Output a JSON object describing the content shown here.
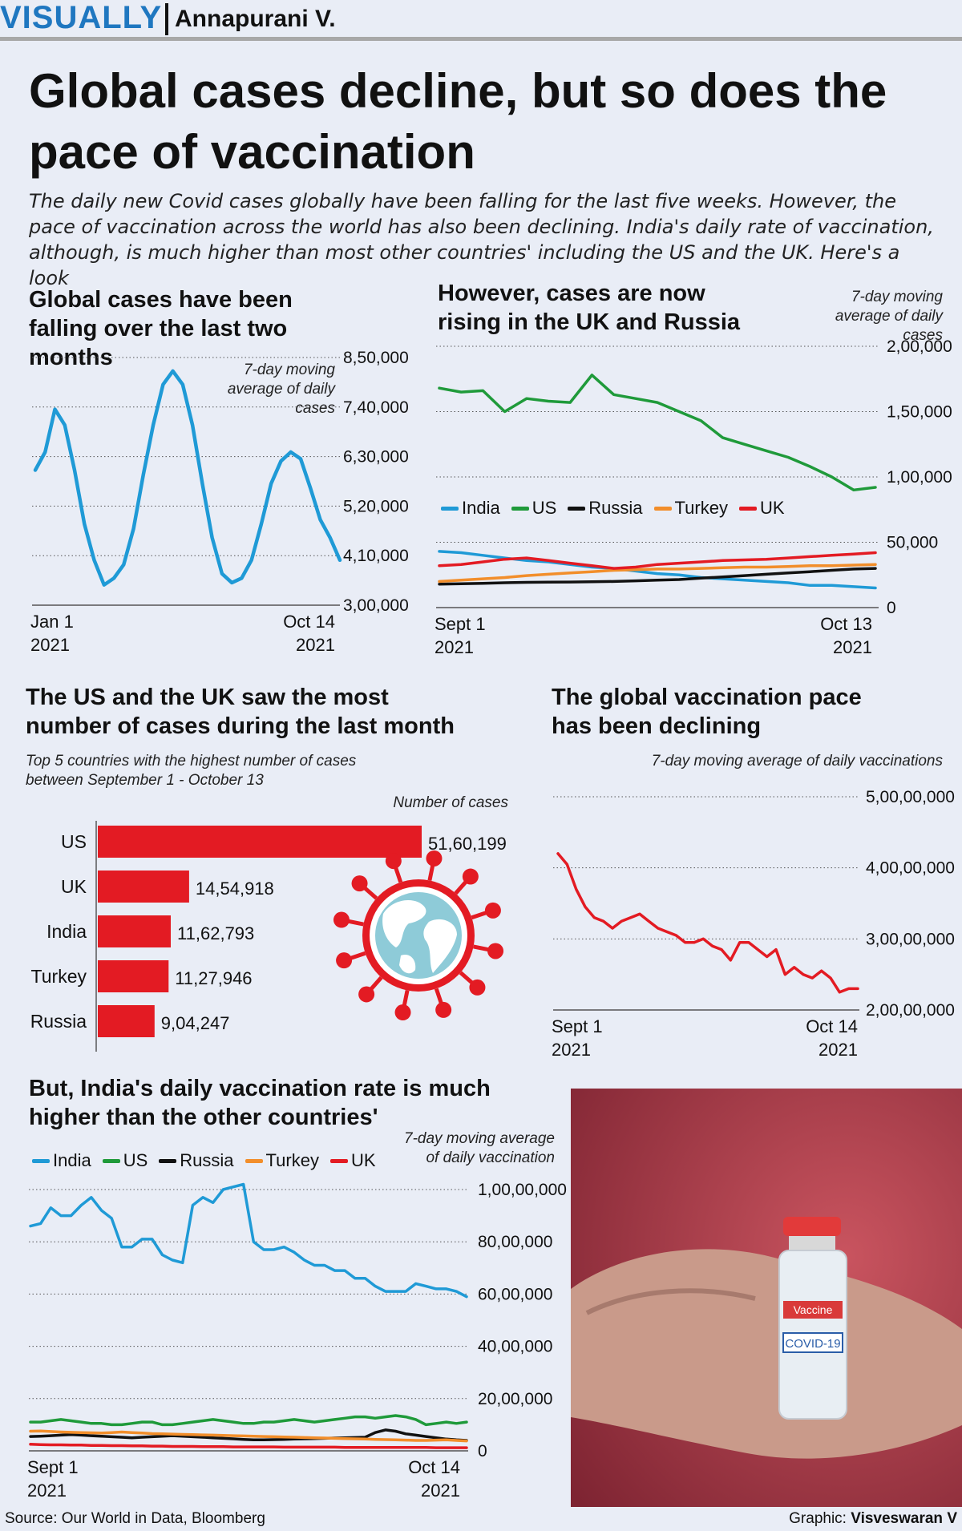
{
  "header": {
    "brand": "VISUALLY",
    "byline": "Annapurani V."
  },
  "headline": "Global cases decline, but so does the pace of vaccination",
  "subheadline": "The daily new Covid cases globally have been falling for the last five weeks. However, the pace of vaccination across the world has also been declining. India's daily rate of vaccination, although, is much higher than most other countries' including the US and the UK. Here's a look",
  "footer": {
    "source": "Source: Our World in Data, Bloomberg",
    "credit_label": "Graphic: ",
    "credit_name": "Visveswaran V"
  },
  "colors": {
    "India": "#1f9ad6",
    "US": "#1f9a3a",
    "Russia": "#111111",
    "Turkey": "#f28e2b",
    "UK": "#e31b23",
    "global": "#1f9ad6",
    "vaccine": "#e31b23",
    "bar": "#e31b23",
    "background": "#e9edf6"
  },
  "icons": {
    "virus": "virus-globe-icon",
    "photo": "vaccine-vial-in-hand-photo"
  },
  "chart_data": [
    {
      "id": "global_cases",
      "type": "line",
      "title": "Global cases have been falling over the last two months",
      "note": "7-day moving average of daily cases",
      "x_start_label": "Jan 1",
      "x_start_year": "2021",
      "x_end_label": "Oct 14",
      "x_end_year": "2021",
      "y_ticks": [
        "3,00,000",
        "4,10,000",
        "5,20,000",
        "6,30,000",
        "7,40,000",
        "8,50,000"
      ],
      "ylim": [
        300000,
        850000
      ],
      "series": [
        {
          "values": [
            600000,
            640000,
            735000,
            700000,
            600000,
            480000,
            400000,
            345000,
            360000,
            390000,
            470000,
            590000,
            700000,
            790000,
            820000,
            790000,
            700000,
            570000,
            450000,
            370000,
            350000,
            360000,
            400000,
            480000,
            570000,
            620000,
            640000,
            625000,
            560000,
            490000,
            450000,
            400000
          ]
        }
      ]
    },
    {
      "id": "country_cases",
      "type": "line",
      "title": "However, cases are now rising in the UK and Russia",
      "note": "7-day moving average of daily cases",
      "x_start_label": "Sept 1",
      "x_start_year": "2021",
      "x_end_label": "Oct 13",
      "x_end_year": "2021",
      "y_ticks": [
        "0",
        "50,000",
        "1,00,000",
        "1,50,000",
        "2,00,000"
      ],
      "ylim": [
        0,
        200000
      ],
      "series": [
        {
          "name": "India",
          "values": [
            43000,
            42000,
            40000,
            38000,
            36000,
            35000,
            33000,
            31000,
            30000,
            28000,
            26000,
            25000,
            23000,
            22000,
            21000,
            20000,
            19000,
            17000,
            17000,
            16000,
            15000
          ]
        },
        {
          "name": "US",
          "values": [
            168000,
            165000,
            166000,
            150000,
            160000,
            158000,
            157000,
            178000,
            163000,
            160000,
            157000,
            150000,
            143000,
            130000,
            125000,
            120000,
            115000,
            108000,
            100000,
            90000,
            92000
          ]
        },
        {
          "name": "Russia",
          "values": [
            18000,
            18200,
            18500,
            19000,
            19300,
            19500,
            19600,
            19800,
            20000,
            20500,
            21000,
            21500,
            22500,
            23500,
            24500,
            25500,
            26500,
            27500,
            28500,
            29500,
            30000
          ]
        },
        {
          "name": "Turkey",
          "values": [
            20000,
            21000,
            22000,
            23000,
            24500,
            25500,
            26500,
            27500,
            28500,
            29000,
            29500,
            29500,
            30000,
            30500,
            31000,
            31000,
            31500,
            32000,
            32000,
            32500,
            33000
          ]
        },
        {
          "name": "UK",
          "values": [
            32000,
            33000,
            35000,
            37000,
            38000,
            36000,
            34000,
            32000,
            30000,
            31000,
            33000,
            34000,
            35000,
            36000,
            36500,
            37000,
            38000,
            39000,
            40000,
            41000,
            42000
          ]
        }
      ]
    },
    {
      "id": "top5_bar",
      "type": "bar",
      "title": "The US and the UK saw the most number of cases during the last month",
      "note": "Top 5 countries with the highest number of cases between September 1 - October 13",
      "value_axis_label": "Number of cases",
      "categories": [
        "US",
        "UK",
        "India",
        "Turkey",
        "Russia"
      ],
      "values": [
        5160199,
        1454918,
        1162793,
        1127946,
        904247
      ],
      "value_labels": [
        "51,60,199",
        "14,54,918",
        "11,62,793",
        "11,27,946",
        "9,04,247"
      ]
    },
    {
      "id": "global_vaccination",
      "type": "line",
      "title": "The global vaccination pace has been declining",
      "note": "7-day moving average of daily vaccinations",
      "x_start_label": "Sept 1",
      "x_start_year": "2021",
      "x_end_label": "Oct 14",
      "x_end_year": "2021",
      "y_ticks": [
        "2,00,00,000",
        "3,00,00,000",
        "4,00,00,000",
        "5,00,00,000"
      ],
      "ylim": [
        20000000,
        50000000
      ],
      "series": [
        {
          "values": [
            42000000,
            40500000,
            37000000,
            34500000,
            33000000,
            32500000,
            31500000,
            32500000,
            33000000,
            33500000,
            32500000,
            31500000,
            31000000,
            30500000,
            29500000,
            29500000,
            30000000,
            29000000,
            28500000,
            27000000,
            29500000,
            29500000,
            28500000,
            27500000,
            28500000,
            25000000,
            26000000,
            25000000,
            24500000,
            25500000,
            24500000,
            22500000,
            23000000,
            23000000
          ]
        }
      ]
    },
    {
      "id": "country_vaccination",
      "type": "line",
      "title": "But, India's daily vaccination rate is much higher than the other countries'",
      "note": "7-day moving average of daily vaccination",
      "x_start_label": "Sept 1",
      "x_start_year": "2021",
      "x_end_label": "Oct 14",
      "x_end_year": "2021",
      "y_ticks": [
        "0",
        "20,00,000",
        "40,00,000",
        "60,00,000",
        "80,00,000",
        "1,00,00,000"
      ],
      "ylim": [
        0,
        10000000
      ],
      "series": [
        {
          "name": "India",
          "values": [
            8600000,
            8700000,
            9300000,
            9000000,
            9000000,
            9400000,
            9700000,
            9200000,
            8900000,
            7800000,
            7800000,
            8100000,
            8100000,
            7500000,
            7300000,
            7200000,
            9400000,
            9700000,
            9500000,
            10000000,
            10100000,
            10200000,
            8000000,
            7700000,
            7700000,
            7800000,
            7600000,
            7300000,
            7100000,
            7100000,
            6900000,
            6900000,
            6600000,
            6600000,
            6300000,
            6100000,
            6100000,
            6100000,
            6400000,
            6300000,
            6200000,
            6200000,
            6100000,
            5900000
          ]
        },
        {
          "name": "US",
          "values": [
            1100000,
            1100000,
            1150000,
            1200000,
            1150000,
            1100000,
            1050000,
            1050000,
            1000000,
            1000000,
            1050000,
            1100000,
            1100000,
            1000000,
            1000000,
            1050000,
            1100000,
            1150000,
            1200000,
            1150000,
            1100000,
            1050000,
            1050000,
            1100000,
            1100000,
            1150000,
            1200000,
            1150000,
            1100000,
            1150000,
            1200000,
            1250000,
            1300000,
            1300000,
            1250000,
            1300000,
            1350000,
            1300000,
            1200000,
            1000000,
            1050000,
            1100000,
            1050000,
            1100000
          ]
        },
        {
          "name": "Russia",
          "values": [
            550000,
            560000,
            580000,
            600000,
            620000,
            600000,
            580000,
            560000,
            540000,
            520000,
            500000,
            520000,
            540000,
            560000,
            580000,
            560000,
            540000,
            520000,
            500000,
            480000,
            460000,
            440000,
            420000,
            420000,
            430000,
            440000,
            450000,
            460000,
            470000,
            480000,
            490000,
            500000,
            510000,
            520000,
            700000,
            800000,
            750000,
            650000,
            600000,
            550000,
            500000,
            450000,
            420000,
            400000
          ]
        },
        {
          "name": "Turkey",
          "values": [
            750000,
            760000,
            740000,
            720000,
            710000,
            700000,
            690000,
            680000,
            700000,
            720000,
            700000,
            680000,
            660000,
            650000,
            640000,
            630000,
            620000,
            610000,
            600000,
            590000,
            580000,
            570000,
            560000,
            550000,
            540000,
            530000,
            520000,
            510000,
            500000,
            490000,
            480000,
            470000,
            460000,
            450000,
            440000,
            430000,
            420000,
            410000,
            400000,
            400000,
            410000,
            420000,
            400000,
            380000
          ]
        },
        {
          "name": "UK",
          "values": [
            250000,
            240000,
            230000,
            230000,
            220000,
            220000,
            210000,
            210000,
            200000,
            200000,
            190000,
            190000,
            180000,
            180000,
            170000,
            170000,
            170000,
            160000,
            160000,
            160000,
            150000,
            150000,
            150000,
            150000,
            150000,
            140000,
            140000,
            140000,
            140000,
            140000,
            140000,
            130000,
            130000,
            130000,
            130000,
            130000,
            130000,
            130000,
            130000,
            130000,
            120000,
            120000,
            120000,
            120000
          ]
        }
      ]
    }
  ]
}
